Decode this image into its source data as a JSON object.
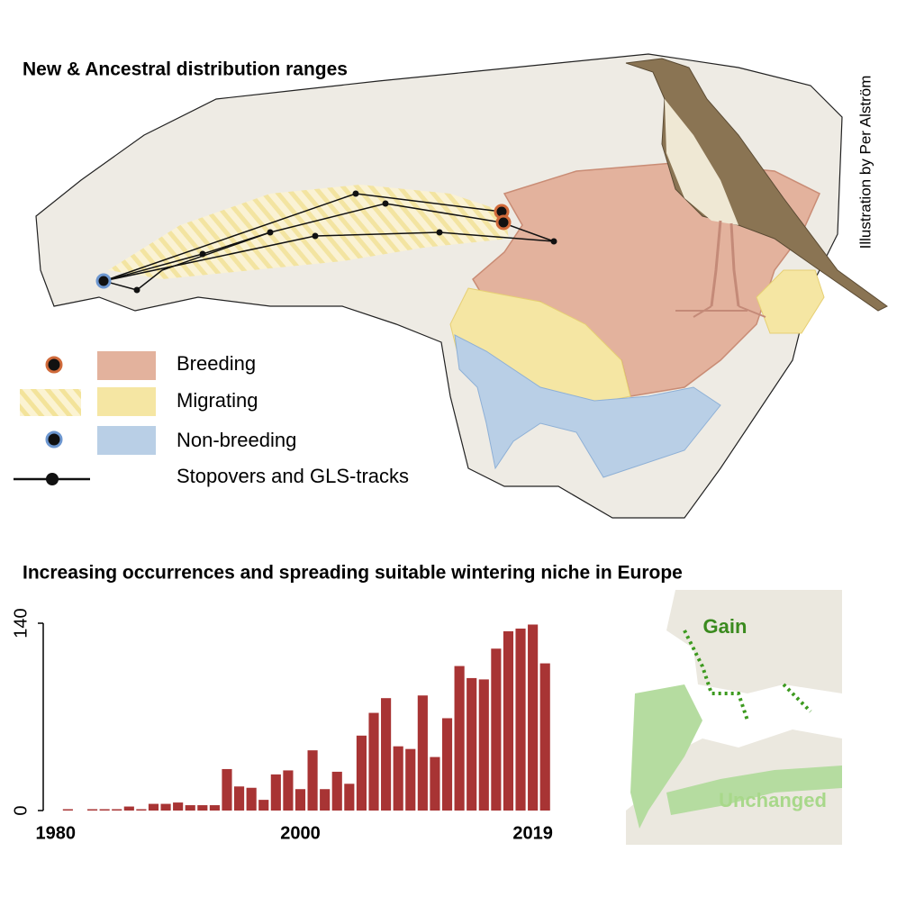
{
  "map": {
    "title": "New & Ancestral distribution ranges",
    "credit": "Illustration by Per Alström",
    "legend": [
      "Breeding",
      "Migrating",
      "Non-breeding",
      "Stopovers and GLS-tracks"
    ]
  },
  "niche_map": {
    "gain_label": "Gain",
    "unchanged_label": "Unchanged"
  },
  "chart_data": {
    "type": "bar",
    "title": "Increasing occurrences and spreading suitable wintering niche in Europe",
    "x": [
      1981,
      1982,
      1983,
      1984,
      1985,
      1986,
      1987,
      1988,
      1989,
      1990,
      1991,
      1992,
      1993,
      1994,
      1995,
      1996,
      1997,
      1998,
      1999,
      2000,
      2001,
      2002,
      2003,
      2004,
      2005,
      2006,
      2007,
      2008,
      2009,
      2010,
      2011,
      2012,
      2013,
      2014,
      2015,
      2016,
      2017,
      2018,
      2019,
      2020
    ],
    "values": [
      1,
      0,
      1,
      1,
      1,
      3,
      1,
      5,
      5,
      6,
      4,
      4,
      4,
      31,
      18,
      17,
      8,
      27,
      30,
      16,
      45,
      16,
      29,
      20,
      56,
      73,
      84,
      48,
      46,
      86,
      40,
      69,
      108,
      99,
      98,
      121,
      134,
      136,
      139,
      110
    ],
    "color": "#a83434",
    "xlim": [
      1979.5,
      2020.5
    ],
    "xticks": [
      1980,
      2000,
      2019
    ],
    "ylim": [
      0,
      140
    ],
    "yticks": [
      0,
      140
    ]
  }
}
